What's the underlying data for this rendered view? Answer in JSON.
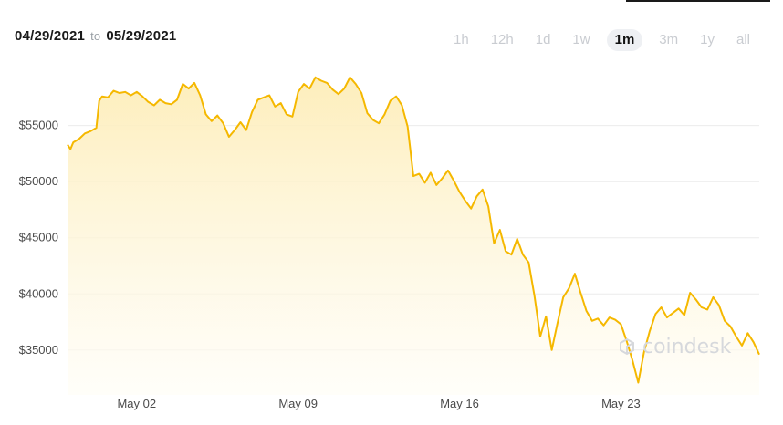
{
  "header": {
    "start_date": "04/29/2021",
    "to_label": "to",
    "end_date": "05/29/2021"
  },
  "ranges": [
    {
      "label": "1h",
      "active": false
    },
    {
      "label": "12h",
      "active": false
    },
    {
      "label": "1d",
      "active": false
    },
    {
      "label": "1w",
      "active": false
    },
    {
      "label": "1m",
      "active": true
    },
    {
      "label": "3m",
      "active": false
    },
    {
      "label": "1y",
      "active": false
    },
    {
      "label": "all",
      "active": false
    }
  ],
  "watermark": "coindesk",
  "colors": {
    "line": "#f5b800",
    "fill_top": "#fdedb8",
    "grid": "#ebebeb",
    "active_bg": "#eef0f3"
  },
  "chart_data": {
    "type": "area",
    "title": "",
    "xlabel": "",
    "ylabel": "",
    "x_start": "2021-04-29",
    "x_end": "2021-05-29",
    "x_ticks": [
      {
        "date": "2021-05-02",
        "label": "May 02"
      },
      {
        "date": "2021-05-09",
        "label": "May 09"
      },
      {
        "date": "2021-05-16",
        "label": "May 16"
      },
      {
        "date": "2021-05-23",
        "label": "May 23"
      }
    ],
    "y_ticks": [
      {
        "value": 35000,
        "label": "$35000"
      },
      {
        "value": 40000,
        "label": "$40000"
      },
      {
        "value": 45000,
        "label": "$45000"
      },
      {
        "value": 50000,
        "label": "$50000"
      },
      {
        "value": 55000,
        "label": "$55000"
      }
    ],
    "ylim": [
      31000,
      60500
    ],
    "grid": true,
    "series": [
      {
        "values": [
          [
            "2021-04-29T00:00",
            53300
          ],
          [
            "2021-04-29T03:00",
            52900
          ],
          [
            "2021-04-29T06:00",
            53500
          ],
          [
            "2021-04-29T12:00",
            53800
          ],
          [
            "2021-04-29T18:00",
            54300
          ],
          [
            "2021-04-30T00:00",
            54500
          ],
          [
            "2021-04-30T06:00",
            54800
          ],
          [
            "2021-04-30T09:00",
            57200
          ],
          [
            "2021-04-30T12:00",
            57600
          ],
          [
            "2021-04-30T18:00",
            57500
          ],
          [
            "2021-05-01T00:00",
            58100
          ],
          [
            "2021-05-01T06:00",
            57900
          ],
          [
            "2021-05-01T12:00",
            58000
          ],
          [
            "2021-05-01T18:00",
            57700
          ],
          [
            "2021-05-02T00:00",
            58000
          ],
          [
            "2021-05-02T06:00",
            57600
          ],
          [
            "2021-05-02T12:00",
            57100
          ],
          [
            "2021-05-02T18:00",
            56800
          ],
          [
            "2021-05-03T00:00",
            57300
          ],
          [
            "2021-05-03T06:00",
            57000
          ],
          [
            "2021-05-03T12:00",
            56900
          ],
          [
            "2021-05-03T18:00",
            57300
          ],
          [
            "2021-05-04T00:00",
            58700
          ],
          [
            "2021-05-04T06:00",
            58300
          ],
          [
            "2021-05-04T12:00",
            58800
          ],
          [
            "2021-05-04T18:00",
            57700
          ],
          [
            "2021-05-05T00:00",
            56000
          ],
          [
            "2021-05-05T06:00",
            55400
          ],
          [
            "2021-05-05T12:00",
            55900
          ],
          [
            "2021-05-05T18:00",
            55200
          ],
          [
            "2021-05-06T00:00",
            54000
          ],
          [
            "2021-05-06T06:00",
            54600
          ],
          [
            "2021-05-06T12:00",
            55300
          ],
          [
            "2021-05-06T18:00",
            54600
          ],
          [
            "2021-05-07T00:00",
            56200
          ],
          [
            "2021-05-07T06:00",
            57300
          ],
          [
            "2021-05-07T12:00",
            57500
          ],
          [
            "2021-05-07T18:00",
            57700
          ],
          [
            "2021-05-08T00:00",
            56700
          ],
          [
            "2021-05-08T06:00",
            57000
          ],
          [
            "2021-05-08T12:00",
            56000
          ],
          [
            "2021-05-08T18:00",
            55800
          ],
          [
            "2021-05-09T00:00",
            58000
          ],
          [
            "2021-05-09T06:00",
            58700
          ],
          [
            "2021-05-09T12:00",
            58300
          ],
          [
            "2021-05-09T18:00",
            59300
          ],
          [
            "2021-05-10T00:00",
            59000
          ],
          [
            "2021-05-10T06:00",
            58800
          ],
          [
            "2021-05-10T12:00",
            58200
          ],
          [
            "2021-05-10T18:00",
            57800
          ],
          [
            "2021-05-11T00:00",
            58300
          ],
          [
            "2021-05-11T06:00",
            59300
          ],
          [
            "2021-05-11T12:00",
            58700
          ],
          [
            "2021-05-11T18:00",
            57900
          ],
          [
            "2021-05-12T00:00",
            56100
          ],
          [
            "2021-05-12T06:00",
            55500
          ],
          [
            "2021-05-12T12:00",
            55200
          ],
          [
            "2021-05-12T18:00",
            56000
          ],
          [
            "2021-05-13T00:00",
            57200
          ],
          [
            "2021-05-13T06:00",
            57600
          ],
          [
            "2021-05-13T12:00",
            56800
          ],
          [
            "2021-05-13T18:00",
            54900
          ],
          [
            "2021-05-14T00:00",
            50500
          ],
          [
            "2021-05-14T06:00",
            50700
          ],
          [
            "2021-05-14T12:00",
            49900
          ],
          [
            "2021-05-14T18:00",
            50800
          ],
          [
            "2021-05-15T00:00",
            49700
          ],
          [
            "2021-05-15T06:00",
            50300
          ],
          [
            "2021-05-15T12:00",
            51000
          ],
          [
            "2021-05-15T18:00",
            50100
          ],
          [
            "2021-05-16T00:00",
            49100
          ],
          [
            "2021-05-16T06:00",
            48300
          ],
          [
            "2021-05-16T12:00",
            47600
          ],
          [
            "2021-05-16T18:00",
            48700
          ],
          [
            "2021-05-17T00:00",
            49300
          ],
          [
            "2021-05-17T06:00",
            47800
          ],
          [
            "2021-05-17T12:00",
            44500
          ],
          [
            "2021-05-17T18:00",
            45700
          ],
          [
            "2021-05-18T00:00",
            43800
          ],
          [
            "2021-05-18T06:00",
            43500
          ],
          [
            "2021-05-18T12:00",
            44900
          ],
          [
            "2021-05-18T18:00",
            43500
          ],
          [
            "2021-05-19T00:00",
            42800
          ],
          [
            "2021-05-19T06:00",
            39800
          ],
          [
            "2021-05-19T12:00",
            36200
          ],
          [
            "2021-05-19T18:00",
            38000
          ],
          [
            "2021-05-20T00:00",
            35000
          ],
          [
            "2021-05-20T06:00",
            37400
          ],
          [
            "2021-05-20T12:00",
            39700
          ],
          [
            "2021-05-20T18:00",
            40500
          ],
          [
            "2021-05-21T00:00",
            41800
          ],
          [
            "2021-05-21T06:00",
            40100
          ],
          [
            "2021-05-21T12:00",
            38500
          ],
          [
            "2021-05-21T18:00",
            37600
          ],
          [
            "2021-05-22T00:00",
            37800
          ],
          [
            "2021-05-22T06:00",
            37200
          ],
          [
            "2021-05-22T12:00",
            37900
          ],
          [
            "2021-05-22T18:00",
            37700
          ],
          [
            "2021-05-23T00:00",
            37300
          ],
          [
            "2021-05-23T06:00",
            35800
          ],
          [
            "2021-05-23T12:00",
            34100
          ],
          [
            "2021-05-23T18:00",
            32100
          ],
          [
            "2021-05-24T00:00",
            34800
          ],
          [
            "2021-05-24T06:00",
            36700
          ],
          [
            "2021-05-24T12:00",
            38200
          ],
          [
            "2021-05-24T18:00",
            38800
          ],
          [
            "2021-05-25T00:00",
            37900
          ],
          [
            "2021-05-25T06:00",
            38300
          ],
          [
            "2021-05-25T12:00",
            38700
          ],
          [
            "2021-05-25T18:00",
            38100
          ],
          [
            "2021-05-26T00:00",
            40100
          ],
          [
            "2021-05-26T06:00",
            39500
          ],
          [
            "2021-05-26T12:00",
            38800
          ],
          [
            "2021-05-26T18:00",
            38600
          ],
          [
            "2021-05-27T00:00",
            39700
          ],
          [
            "2021-05-27T06:00",
            39000
          ],
          [
            "2021-05-27T12:00",
            37600
          ],
          [
            "2021-05-27T18:00",
            37100
          ],
          [
            "2021-05-28T00:00",
            36200
          ],
          [
            "2021-05-28T06:00",
            35400
          ],
          [
            "2021-05-28T12:00",
            36500
          ],
          [
            "2021-05-28T18:00",
            35700
          ],
          [
            "2021-05-29T00:00",
            34600
          ]
        ]
      }
    ]
  }
}
